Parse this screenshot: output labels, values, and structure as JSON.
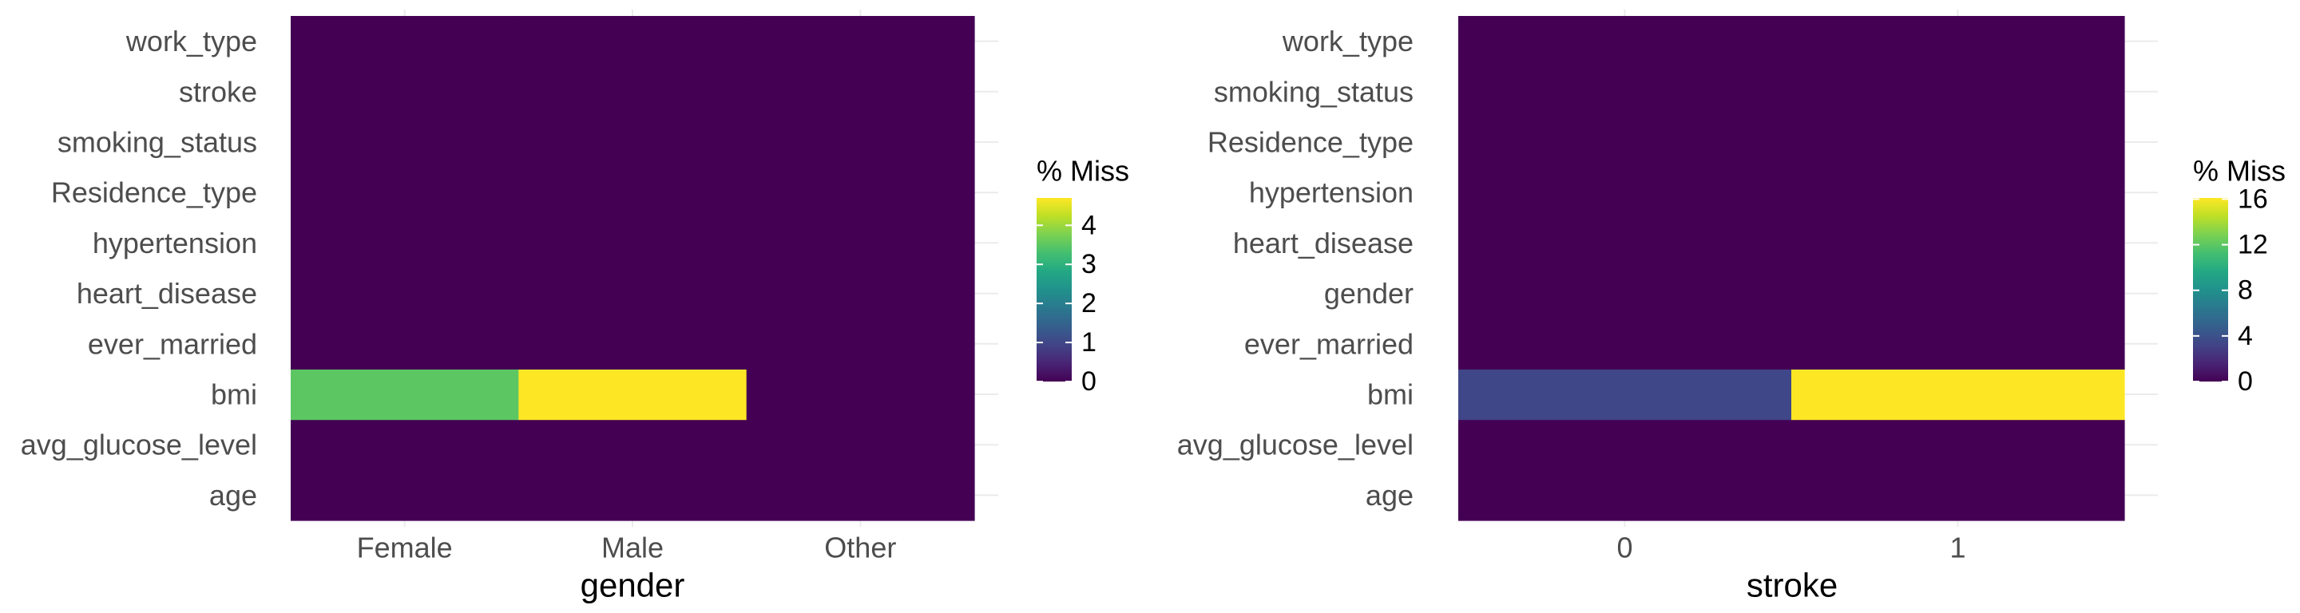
{
  "chart_data": [
    {
      "type": "heatmap",
      "xlabel": "gender",
      "categories": [
        "Female",
        "Male",
        "Other"
      ],
      "variables": [
        "age",
        "avg_glucose_level",
        "bmi",
        "ever_married",
        "heart_disease",
        "hypertension",
        "Residence_type",
        "smoking_status",
        "stroke",
        "work_type"
      ],
      "values": [
        [
          0,
          0,
          0
        ],
        [
          0,
          0,
          0
        ],
        [
          3.5,
          4.7,
          0
        ],
        [
          0,
          0,
          0
        ],
        [
          0,
          0,
          0
        ],
        [
          0,
          0,
          0
        ],
        [
          0,
          0,
          0
        ],
        [
          0,
          0,
          0
        ],
        [
          0,
          0,
          0
        ],
        [
          0,
          0,
          0
        ]
      ],
      "legend": {
        "title": "% Miss",
        "ticks": [
          0,
          1,
          2,
          3,
          4
        ],
        "range": [
          0,
          4.7
        ]
      },
      "grid": true
    },
    {
      "type": "heatmap",
      "xlabel": "stroke",
      "categories": [
        "0",
        "1"
      ],
      "variables": [
        "age",
        "avg_glucose_level",
        "bmi",
        "ever_married",
        "gender",
        "heart_disease",
        "hypertension",
        "Residence_type",
        "smoking_status",
        "work_type"
      ],
      "values": [
        [
          0,
          0
        ],
        [
          0,
          0
        ],
        [
          3.4,
          16.1
        ],
        [
          0,
          0
        ],
        [
          0,
          0
        ],
        [
          0,
          0
        ],
        [
          0,
          0
        ],
        [
          0,
          0
        ],
        [
          0,
          0
        ],
        [
          0,
          0
        ]
      ],
      "legend": {
        "title": "% Miss",
        "ticks": [
          0,
          4,
          8,
          12,
          16
        ],
        "range": [
          0,
          16.1
        ]
      },
      "grid": true
    }
  ],
  "colors": {
    "viridis_low": "#440154",
    "viridis_high": "#FDE725",
    "grid": "#ebebeb",
    "label": "#4d4d4d"
  }
}
